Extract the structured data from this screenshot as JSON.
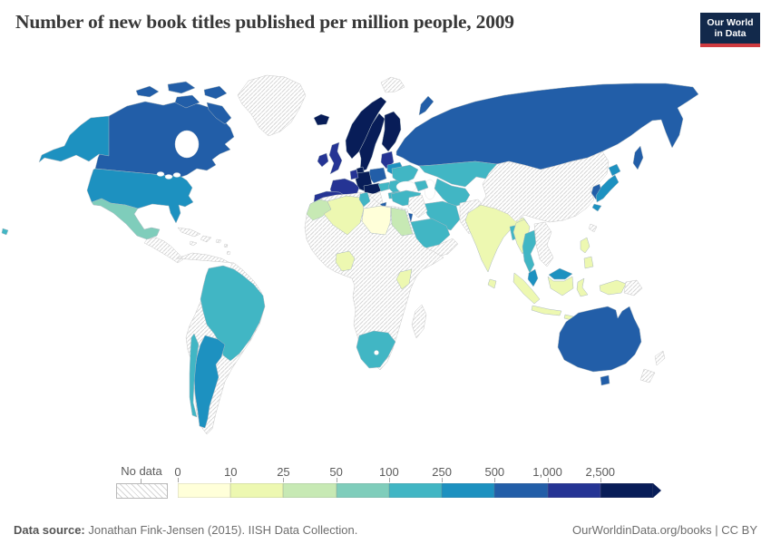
{
  "header": {
    "title": "Number of new book titles published per million people, 2009",
    "logo": {
      "line1": "Our World",
      "line2": "in Data",
      "bg_color": "#12294b",
      "accent_color": "#cf3b40"
    }
  },
  "footer": {
    "source_label": "Data source:",
    "source_text": " Jonathan Fink-Jensen (2015). IISH Data Collection.",
    "link_text": "OurWorldinData.org/books | CC BY"
  },
  "chart_data": {
    "type": "choropleth",
    "title": "Number of new book titles published per million people, 2009",
    "unit": "new book titles per million people",
    "year": "2009",
    "legend_position": "bottom",
    "no_data": {
      "label": "No data",
      "style": "diagonal-hatch"
    },
    "bins": [
      {
        "tick": "0",
        "range": "0–10",
        "color": "#ffffd9"
      },
      {
        "tick": "10",
        "range": "10–25",
        "color": "#edf8b1"
      },
      {
        "tick": "25",
        "range": "25–50",
        "color": "#c7e9b4"
      },
      {
        "tick": "50",
        "range": "50–100",
        "color": "#7fcdbb"
      },
      {
        "tick": "100",
        "range": "100–250",
        "color": "#41b6c4"
      },
      {
        "tick": "250",
        "range": "250–500",
        "color": "#1d91c0"
      },
      {
        "tick": "500",
        "range": "500–1,000",
        "color": "#225ea8"
      },
      {
        "tick": "1,000",
        "range": "1,000–2,500",
        "color": "#253494"
      },
      {
        "tick": "2,500",
        "range": "2,500+",
        "color": "#081d58"
      }
    ],
    "countries": {
      "canada": {
        "range": "500–1,000",
        "color": "#225ea8"
      },
      "united-states": {
        "range": "250–500",
        "color": "#1d91c0"
      },
      "greenland": {
        "range": "No data",
        "color": "no-data"
      },
      "mexico": {
        "range": "50–100",
        "color": "#7fcdbb"
      },
      "central-america": {
        "range": "No data",
        "color": "no-data"
      },
      "cuba": {
        "range": "No data",
        "color": "no-data"
      },
      "hispaniola": {
        "range": "No data",
        "color": "no-data"
      },
      "jamaica": {
        "range": "No data",
        "color": "no-data"
      },
      "puerto-rico": {
        "range": "No data",
        "color": "no-data"
      },
      "lesser-antilles": {
        "range": "No data",
        "color": "no-data"
      },
      "south-america-other": {
        "range": "No data",
        "color": "no-data"
      },
      "brazil": {
        "range": "100–250",
        "color": "#41b6c4"
      },
      "argentina": {
        "range": "250–500",
        "color": "#1d91c0"
      },
      "chile": {
        "range": "100–250",
        "color": "#41b6c4"
      },
      "iceland": {
        "range": "2,500+",
        "color": "#081d58"
      },
      "ireland": {
        "range": "1,000–2,500",
        "color": "#253494"
      },
      "united-kingdom": {
        "range": "1,000–2,500",
        "color": "#253494"
      },
      "norway": {
        "range": "2,500+",
        "color": "#081d58"
      },
      "sweden": {
        "range": "2,500+",
        "color": "#081d58"
      },
      "finland": {
        "range": "2,500+",
        "color": "#081d58"
      },
      "denmark": {
        "range": "2,500+",
        "color": "#081d58"
      },
      "germany": {
        "range": "2,500+",
        "color": "#081d58"
      },
      "central-europe": {
        "range": "2,500+",
        "color": "#081d58"
      },
      "benelux": {
        "range": "1,000–2,500",
        "color": "#253494"
      },
      "france": {
        "range": "1,000–2,500",
        "color": "#253494"
      },
      "iberia": {
        "range": "1,000–2,500",
        "color": "#253494"
      },
      "baltic-states": {
        "range": "1,000–2,500",
        "color": "#253494"
      },
      "poland": {
        "range": "500–1,000",
        "color": "#225ea8"
      },
      "italy": {
        "range": "500–1,000",
        "color": "#225ea8"
      },
      "greece": {
        "range": "500–1,000",
        "color": "#225ea8"
      },
      "russia": {
        "range": "500–1,000",
        "color": "#225ea8"
      },
      "belarus": {
        "range": "250–500",
        "color": "#1d91c0"
      },
      "ukraine": {
        "range": "100–250",
        "color": "#41b6c4"
      },
      "romania": {
        "range": "100–250",
        "color": "#41b6c4"
      },
      "bulgaria": {
        "range": "100–250",
        "color": "#41b6c4"
      },
      "hungary-slovakia": {
        "range": "100–250",
        "color": "#41b6c4"
      },
      "balkans": {
        "range": "No data",
        "color": "no-data"
      },
      "svalbard": {
        "range": "No data",
        "color": "no-data"
      },
      "turkey": {
        "range": "100–250",
        "color": "#41b6c4"
      },
      "caucasus": {
        "range": "100–250",
        "color": "#41b6c4"
      },
      "kazakhstan": {
        "range": "100–250",
        "color": "#41b6c4"
      },
      "central-asia": {
        "range": "100–250",
        "color": "#41b6c4"
      },
      "iran": {
        "range": "100–250",
        "color": "#41b6c4"
      },
      "iraq-syria": {
        "range": "No data",
        "color": "no-data"
      },
      "israel": {
        "range": "500–1,000",
        "color": "#225ea8"
      },
      "saudi-arabia": {
        "range": "100–250",
        "color": "#41b6c4"
      },
      "yemen-oman": {
        "range": "No data",
        "color": "no-data"
      },
      "afghanistan-pakistan": {
        "range": "No data",
        "color": "no-data"
      },
      "india": {
        "range": "10–25",
        "color": "#edf8b1"
      },
      "sri-lanka": {
        "range": "10–25",
        "color": "#edf8b1"
      },
      "bangladesh": {
        "range": "100–250",
        "color": "#41b6c4"
      },
      "china-mongolia": {
        "range": "No data",
        "color": "no-data"
      },
      "taiwan": {
        "range": "No data",
        "color": "no-data"
      },
      "south-korea": {
        "range": "500–1,000",
        "color": "#225ea8"
      },
      "japan": {
        "range": "250–500",
        "color": "#1d91c0"
      },
      "myanmar": {
        "range": "10–25",
        "color": "#edf8b1"
      },
      "thailand": {
        "range": "100–250",
        "color": "#41b6c4"
      },
      "indochina": {
        "range": "No data",
        "color": "no-data"
      },
      "malaysia": {
        "range": "250–500",
        "color": "#1d91c0"
      },
      "indonesia": {
        "range": "10–25",
        "color": "#edf8b1"
      },
      "philippines": {
        "range": "10–25",
        "color": "#edf8b1"
      },
      "indonesian-papua": {
        "range": "10–25",
        "color": "#edf8b1"
      },
      "papua-new-guinea": {
        "range": "No data",
        "color": "no-data"
      },
      "australia": {
        "range": "500–1,000",
        "color": "#225ea8"
      },
      "new-zealand": {
        "range": "No data",
        "color": "no-data"
      },
      "africa-other": {
        "range": "No data",
        "color": "no-data"
      },
      "morocco": {
        "range": "25–50",
        "color": "#c7e9b4"
      },
      "algeria": {
        "range": "10–25",
        "color": "#edf8b1"
      },
      "tunisia": {
        "range": "100–250",
        "color": "#41b6c4"
      },
      "libya": {
        "range": "0–10",
        "color": "#ffffd9"
      },
      "egypt": {
        "range": "25–50",
        "color": "#c7e9b4"
      },
      "nigeria": {
        "range": "10–25",
        "color": "#edf8b1"
      },
      "kenya": {
        "range": "10–25",
        "color": "#edf8b1"
      },
      "south-africa": {
        "range": "100–250",
        "color": "#41b6c4"
      },
      "madagascar": {
        "range": "No data",
        "color": "no-data"
      },
      "fiji": {
        "range": "100–250",
        "color": "#41b6c4"
      }
    }
  }
}
